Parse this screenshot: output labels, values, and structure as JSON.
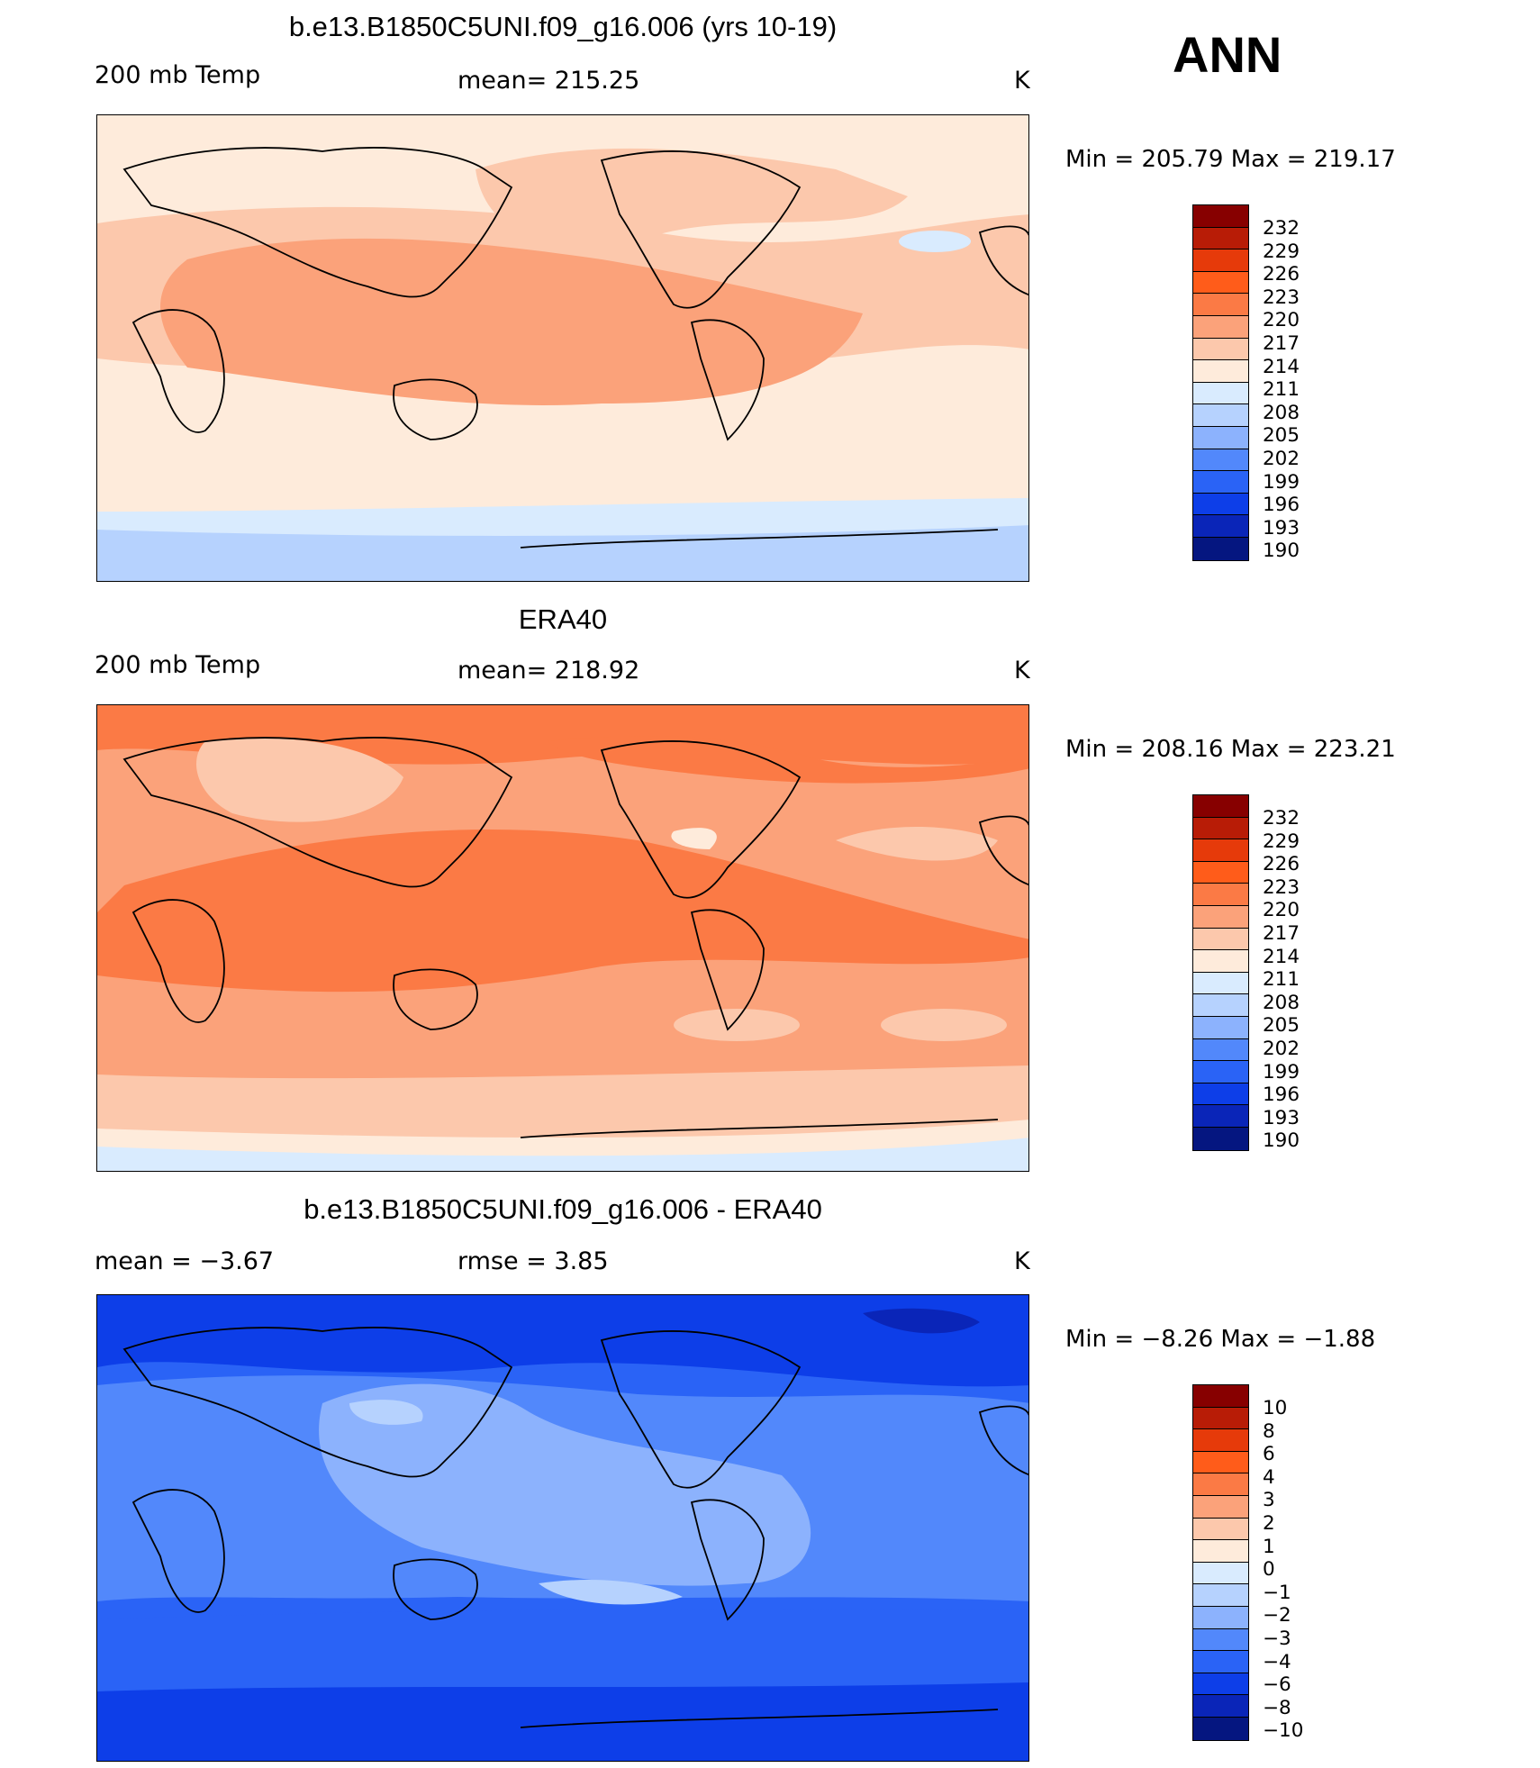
{
  "season": "ANN",
  "chart_data": [
    {
      "type": "heatmap",
      "title": "b.e13.B1850C5UNI.f09_g16.006 (yrs 10-19)",
      "left_label": "200 mb Temp",
      "center_label": "mean= 215.25",
      "units": "K",
      "min_max": "Min = 205.79 Max = 219.17",
      "colorbar_ticks": [
        "232",
        "229",
        "226",
        "223",
        "220",
        "217",
        "214",
        "211",
        "208",
        "205",
        "202",
        "199",
        "196",
        "193",
        "190"
      ],
      "field": "ANN 200 mb temperature, model"
    },
    {
      "type": "heatmap",
      "title": "ERA40",
      "left_label": "200 mb Temp",
      "center_label": "mean= 218.92",
      "units": "K",
      "min_max": "Min = 208.16 Max = 223.21",
      "colorbar_ticks": [
        "232",
        "229",
        "226",
        "223",
        "220",
        "217",
        "214",
        "211",
        "208",
        "205",
        "202",
        "199",
        "196",
        "193",
        "190"
      ],
      "field": "ANN 200 mb temperature, ERA40 reanalysis"
    },
    {
      "type": "heatmap",
      "title": "b.e13.B1850C5UNI.f09_g16.006 - ERA40",
      "left_label": "mean =   −3.67",
      "center_label": "rmse =    3.85",
      "units": "K",
      "min_max": "Min =  −8.26 Max =  −1.88",
      "colorbar_ticks": [
        "10",
        "8",
        "6",
        "4",
        "3",
        "2",
        "1",
        "0",
        "−1",
        "−2",
        "−3",
        "−4",
        "−6",
        "−8",
        "−10"
      ],
      "field": "difference model minus ERA40"
    }
  ],
  "colors": {
    "palette": [
      "#870000",
      "#b81c06",
      "#e63a0a",
      "#ff5c1a",
      "#fb7a45",
      "#fba27a",
      "#fcc8ac",
      "#feebdb",
      "#d9ebfe",
      "#b6d2fe",
      "#8cb2fd",
      "#5288fb",
      "#2a63f6",
      "#0d3ee8",
      "#0a25b8",
      "#051680"
    ],
    "land_outline": "#000000"
  }
}
